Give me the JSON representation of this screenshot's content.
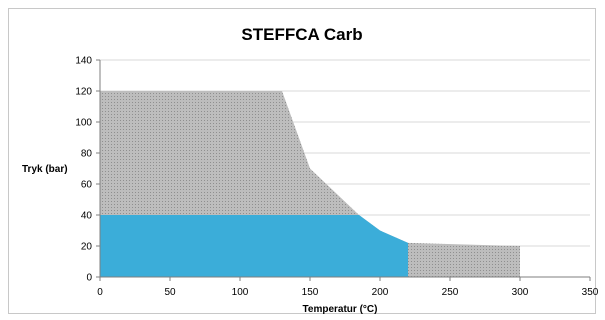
{
  "chart_data": {
    "type": "area",
    "title": "STEFFCA Carb",
    "xlabel": "Temperatur (°C)",
    "ylabel": "Tryk (bar)",
    "xlim": [
      0,
      350
    ],
    "ylim": [
      0,
      140
    ],
    "xticks": [
      0,
      50,
      100,
      150,
      200,
      250,
      300,
      350
    ],
    "yticks": [
      0,
      20,
      40,
      60,
      80,
      100,
      120,
      140
    ],
    "grid": true,
    "legend": "none",
    "series": [
      {
        "color": "#b7b7b7",
        "points": [
          [
            0,
            120
          ],
          [
            130,
            120
          ],
          [
            150,
            70
          ],
          [
            185,
            40
          ],
          [
            200,
            30
          ],
          [
            220,
            22
          ],
          [
            300,
            20
          ],
          [
            300,
            0
          ],
          [
            0,
            0
          ]
        ]
      },
      {
        "color": "#3badd9",
        "points": [
          [
            0,
            40
          ],
          [
            185,
            40
          ],
          [
            200,
            30
          ],
          [
            220,
            22
          ],
          [
            220,
            0
          ],
          [
            0,
            0
          ]
        ]
      }
    ]
  }
}
